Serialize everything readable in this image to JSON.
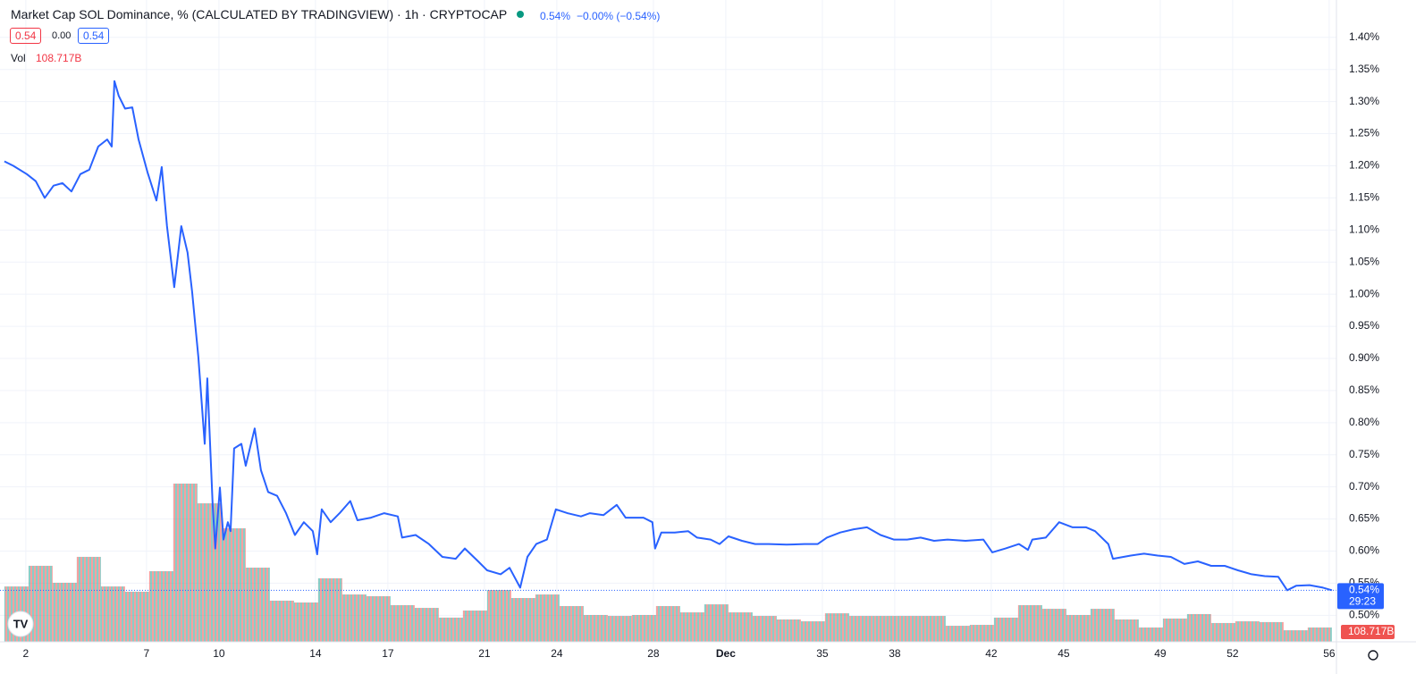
{
  "header": {
    "title": "Market Cap SOL Dominance, % (CALCULATED BY TRADINGVIEW) · 1h · CRYPTOCAP",
    "quote": "0.54%",
    "change": "−0.00% (−0.54%)",
    "bid": "0.54",
    "spread": "0.00",
    "ask": "0.54",
    "vol_name": "Vol",
    "vol_value": "108.717B"
  },
  "chart_data": {
    "type": "line",
    "color": "#2962ff",
    "grid": true,
    "x": [
      1.11,
      1.48,
      2.04,
      2.41,
      2.78,
      3.15,
      3.52,
      3.89,
      4.26,
      4.63,
      5.0,
      5.37,
      5.56,
      5.67,
      5.85,
      6.11,
      6.41,
      6.67,
      7.04,
      7.41,
      7.63,
      7.85,
      8.15,
      8.44,
      8.7,
      8.89,
      9.15,
      9.41,
      9.52,
      9.74,
      9.85,
      10.04,
      10.19,
      10.37,
      10.48,
      10.63,
      10.93,
      11.11,
      11.48,
      11.74,
      12.04,
      12.41,
      12.78,
      13.15,
      13.52,
      13.89,
      14.07,
      14.26,
      14.63,
      15.0,
      15.44,
      15.74,
      16.3,
      16.85,
      17.41,
      17.59,
      18.15,
      18.7,
      19.26,
      19.81,
      20.19,
      20.74,
      21.11,
      21.67,
      22.04,
      22.48,
      22.78,
      23.15,
      23.59,
      23.96,
      24.44,
      25.0,
      25.37,
      25.93,
      26.48,
      26.85,
      27.59,
      27.96,
      28.07,
      28.33,
      28.89,
      29.44,
      29.81,
      30.37,
      30.74,
      31.11,
      31.67,
      32.22,
      32.78,
      33.52,
      34.26,
      34.81,
      35.19,
      35.74,
      36.3,
      36.85,
      37.41,
      37.96,
      38.52,
      39.07,
      39.63,
      40.19,
      40.93,
      41.67,
      42.04,
      42.59,
      43.15,
      43.52,
      43.7,
      44.26,
      44.81,
      45.37,
      45.93,
      46.3,
      46.85,
      47.04,
      47.78,
      48.33,
      48.89,
      49.44,
      50.0,
      50.56,
      51.11,
      51.67,
      52.22,
      52.78,
      53.33,
      53.89,
      54.26,
      54.63,
      55.19,
      55.74,
      56.11
    ],
    "values": [
      1.207,
      1.2,
      1.187,
      1.176,
      1.15,
      1.169,
      1.173,
      1.16,
      1.187,
      1.194,
      1.23,
      1.241,
      1.23,
      1.332,
      1.309,
      1.289,
      1.291,
      1.241,
      1.19,
      1.146,
      1.198,
      1.106,
      1.011,
      1.106,
      1.065,
      1.004,
      0.902,
      0.767,
      0.869,
      0.672,
      0.604,
      0.699,
      0.618,
      0.645,
      0.631,
      0.76,
      0.767,
      0.733,
      0.791,
      0.726,
      0.692,
      0.686,
      0.659,
      0.625,
      0.645,
      0.631,
      0.595,
      0.665,
      0.645,
      0.659,
      0.678,
      0.648,
      0.652,
      0.659,
      0.654,
      0.621,
      0.625,
      0.611,
      0.591,
      0.588,
      0.604,
      0.584,
      0.57,
      0.564,
      0.574,
      0.543,
      0.591,
      0.611,
      0.618,
      0.665,
      0.659,
      0.654,
      0.659,
      0.656,
      0.672,
      0.652,
      0.652,
      0.645,
      0.604,
      0.629,
      0.629,
      0.631,
      0.621,
      0.618,
      0.611,
      0.623,
      0.616,
      0.611,
      0.611,
      0.61,
      0.611,
      0.611,
      0.621,
      0.629,
      0.634,
      0.637,
      0.625,
      0.618,
      0.618,
      0.621,
      0.616,
      0.618,
      0.616,
      0.618,
      0.598,
      0.604,
      0.611,
      0.602,
      0.618,
      0.621,
      0.645,
      0.637,
      0.637,
      0.631,
      0.611,
      0.588,
      0.593,
      0.596,
      0.593,
      0.591,
      0.58,
      0.584,
      0.577,
      0.577,
      0.57,
      0.564,
      0.561,
      0.56,
      0.539,
      0.546,
      0.547,
      0.543,
      0.539
    ],
    "xlim": [
      0.93,
      56.3
    ],
    "xticks": [
      2,
      7,
      10,
      14,
      17,
      21,
      24,
      28,
      {
        "value": 31,
        "label": "Dec"
      },
      35,
      38,
      42,
      45,
      49,
      52,
      56
    ],
    "ylim": [
      0.4587,
      1.4582
    ],
    "yticks": [
      {
        "value": 0.5,
        "label": "0.50%"
      },
      {
        "value": 0.55,
        "label": "0.55%"
      },
      {
        "value": 0.6,
        "label": "0.60%"
      },
      {
        "value": 0.65,
        "label": "0.65%"
      },
      {
        "value": 0.7,
        "label": "0.70%"
      },
      {
        "value": 0.75,
        "label": "0.75%"
      },
      {
        "value": 0.8,
        "label": "0.80%"
      },
      {
        "value": 0.85,
        "label": "0.85%"
      },
      {
        "value": 0.9,
        "label": "0.90%"
      },
      {
        "value": 0.95,
        "label": "0.95%"
      },
      {
        "value": 1.0,
        "label": "1.00%"
      },
      {
        "value": 1.05,
        "label": "1.05%"
      },
      {
        "value": 1.1,
        "label": "1.10%"
      },
      {
        "value": 1.15,
        "label": "1.15%"
      },
      {
        "value": 1.2,
        "label": "1.20%"
      },
      {
        "value": 1.25,
        "label": "1.25%"
      },
      {
        "value": 1.3,
        "label": "1.30%"
      },
      {
        "value": 1.35,
        "label": "1.35%"
      },
      {
        "value": 1.4,
        "label": "1.40%"
      }
    ],
    "last_label": "0.54%",
    "countdown": "29:23",
    "volume": {
      "name": "Vol",
      "colors": [
        "#26a69a",
        "#ef5350"
      ],
      "ylim": [
        0,
        1400
      ],
      "values": [
        421,
        578,
        449,
        646,
        421,
        381,
        537,
        1203,
        1053,
        863,
        564,
        313,
        299,
        483,
        360,
        347,
        279,
        258,
        184,
        238,
        394,
        333,
        360,
        272,
        204,
        197,
        204,
        272,
        224,
        285,
        224,
        197,
        170,
        156,
        217,
        197,
        197,
        197,
        197,
        122,
        129,
        184,
        279,
        251,
        204,
        251,
        170,
        109,
        177,
        211,
        143,
        156,
        150,
        88,
        109
      ],
      "last": 108.717,
      "last_label": "108.717B"
    }
  }
}
